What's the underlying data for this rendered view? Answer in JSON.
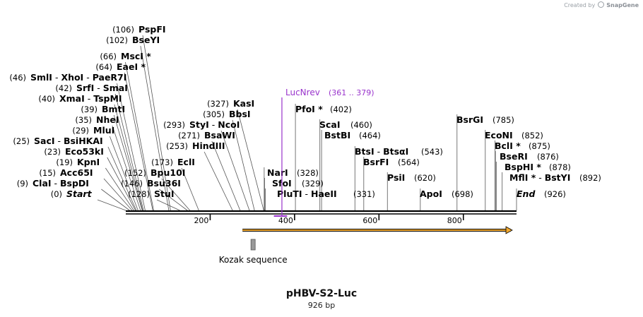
{
  "header": {
    "credit_prefix": "Created by",
    "credit_brand": "SnapGene"
  },
  "plasmid": {
    "name": "pHBV-S2-Luc",
    "length_label": "926 bp",
    "length": 926
  },
  "colors": {
    "line": "#000000",
    "primer": "#9933cc",
    "feature_orange": "#f0a830",
    "kozak_fill": "#999999"
  },
  "ruler": {
    "ticks": [
      200,
      400,
      600,
      800
    ]
  },
  "features": {
    "orf": {
      "start": 300,
      "end": 926,
      "direction": "forward"
    },
    "kozak": {
      "label": "Kozak sequence",
      "position": 300
    },
    "primer": {
      "name": "LucNrev",
      "range": "(361 .. 379)",
      "start": 361,
      "end": 379,
      "direction": "reverse"
    }
  },
  "sites": [
    {
      "names": [
        {
          "n": "Start",
          "italic": true
        }
      ],
      "pos": "(0)",
      "bp": 0,
      "side": "left"
    },
    {
      "names": [
        {
          "n": "ClaI"
        },
        {
          "n": "BspDI"
        }
      ],
      "pos": "(9)",
      "bp": 9,
      "side": "left"
    },
    {
      "names": [
        {
          "n": "Acc65I"
        }
      ],
      "pos": "(15)",
      "bp": 15,
      "side": "left"
    },
    {
      "names": [
        {
          "n": "KpnI"
        }
      ],
      "pos": "(19)",
      "bp": 19,
      "side": "left"
    },
    {
      "names": [
        {
          "n": "Eco53kI"
        }
      ],
      "pos": "(23)",
      "bp": 23,
      "side": "left"
    },
    {
      "names": [
        {
          "n": "SacI"
        },
        {
          "n": "BsiHKAI"
        }
      ],
      "pos": "(25)",
      "bp": 25,
      "side": "left"
    },
    {
      "names": [
        {
          "n": "MluI"
        }
      ],
      "pos": "(29)",
      "bp": 29,
      "side": "left"
    },
    {
      "names": [
        {
          "n": "NheI"
        }
      ],
      "pos": "(35)",
      "bp": 35,
      "side": "left"
    },
    {
      "names": [
        {
          "n": "BmtI"
        }
      ],
      "pos": "(39)",
      "bp": 39,
      "side": "left"
    },
    {
      "names": [
        {
          "n": "XmaI"
        },
        {
          "n": "TspMI"
        }
      ],
      "pos": "(40)",
      "bp": 40,
      "side": "left"
    },
    {
      "names": [
        {
          "n": "SrfI"
        },
        {
          "n": "SmaI"
        }
      ],
      "pos": "(42)",
      "bp": 42,
      "side": "left"
    },
    {
      "names": [
        {
          "n": "SmlI"
        },
        {
          "n": "XhoI"
        },
        {
          "n": "PaeR7I"
        }
      ],
      "pos": "(46)",
      "bp": 46,
      "side": "left"
    },
    {
      "names": [
        {
          "n": "EaeI *"
        }
      ],
      "pos": "(64)",
      "bp": 64,
      "side": "left"
    },
    {
      "names": [
        {
          "n": "MscI *"
        }
      ],
      "pos": "(66)",
      "bp": 66,
      "side": "left"
    },
    {
      "names": [
        {
          "n": "BseYI"
        }
      ],
      "pos": "(102)",
      "bp": 102,
      "side": "left"
    },
    {
      "names": [
        {
          "n": "PspFI"
        }
      ],
      "pos": "(106)",
      "bp": 106,
      "side": "left"
    },
    {
      "names": [
        {
          "n": "StuI"
        }
      ],
      "pos": "(128)",
      "bp": 128,
      "side": "left"
    },
    {
      "names": [
        {
          "n": "Bsu36I"
        }
      ],
      "pos": "(146)",
      "bp": 146,
      "side": "left"
    },
    {
      "names": [
        {
          "n": "Bpu10I"
        }
      ],
      "pos": "(152)",
      "bp": 152,
      "side": "left"
    },
    {
      "names": [
        {
          "n": "EclI"
        }
      ],
      "pos": "(173)",
      "bp": 173,
      "side": "left"
    },
    {
      "names": [
        {
          "n": "HindIII"
        }
      ],
      "pos": "(253)",
      "bp": 253,
      "side": "left"
    },
    {
      "names": [
        {
          "n": "BsaWI"
        }
      ],
      "pos": "(271)",
      "bp": 271,
      "side": "left"
    },
    {
      "names": [
        {
          "n": "StyI"
        },
        {
          "n": "NcoI"
        }
      ],
      "pos": "(293)",
      "bp": 293,
      "side": "left"
    },
    {
      "names": [
        {
          "n": "BbsI"
        }
      ],
      "pos": "(305)",
      "bp": 305,
      "side": "left"
    },
    {
      "names": [
        {
          "n": "KasI"
        }
      ],
      "pos": "(327)",
      "bp": 327,
      "side": "left"
    },
    {
      "names": [
        {
          "n": "NarI"
        }
      ],
      "pos": "(328)",
      "bp": 328,
      "side": "right"
    },
    {
      "names": [
        {
          "n": "SfoI"
        }
      ],
      "pos": "(329)",
      "bp": 329,
      "side": "right"
    },
    {
      "names": [
        {
          "n": "PluTI"
        },
        {
          "n": "HaeII"
        }
      ],
      "pos": "(331)",
      "bp": 331,
      "side": "right"
    },
    {
      "names": [
        {
          "n": "PfoI *"
        }
      ],
      "pos": "(402)",
      "bp": 402,
      "side": "right"
    },
    {
      "names": [
        {
          "n": "ScaI"
        }
      ],
      "pos": "(460)",
      "bp": 460,
      "side": "right"
    },
    {
      "names": [
        {
          "n": "BstBI"
        }
      ],
      "pos": "(464)",
      "bp": 464,
      "side": "right"
    },
    {
      "names": [
        {
          "n": "BtsI"
        },
        {
          "n": "BtsαI"
        }
      ],
      "pos": "(543)",
      "bp": 543,
      "side": "right"
    },
    {
      "names": [
        {
          "n": "BsrFI"
        }
      ],
      "pos": "(564)",
      "bp": 564,
      "side": "right"
    },
    {
      "names": [
        {
          "n": "PsiI"
        }
      ],
      "pos": "(620)",
      "bp": 620,
      "side": "right"
    },
    {
      "names": [
        {
          "n": "ApoI"
        }
      ],
      "pos": "(698)",
      "bp": 698,
      "side": "right"
    },
    {
      "names": [
        {
          "n": "BsrGI"
        }
      ],
      "pos": "(785)",
      "bp": 785,
      "side": "right"
    },
    {
      "names": [
        {
          "n": "EcoNI"
        }
      ],
      "pos": "(852)",
      "bp": 852,
      "side": "right"
    },
    {
      "names": [
        {
          "n": "BclI *"
        }
      ],
      "pos": "(875)",
      "bp": 875,
      "side": "right"
    },
    {
      "names": [
        {
          "n": "BseRI"
        }
      ],
      "pos": "(876)",
      "bp": 876,
      "side": "right"
    },
    {
      "names": [
        {
          "n": "BspHI *"
        }
      ],
      "pos": "(878)",
      "bp": 878,
      "side": "right"
    },
    {
      "names": [
        {
          "n": "MflI *"
        },
        {
          "n": "BstYI"
        }
      ],
      "pos": "(892)",
      "bp": 892,
      "side": "right"
    },
    {
      "names": [
        {
          "n": "End",
          "italic": true
        }
      ],
      "pos": "(926)",
      "bp": 926,
      "side": "right"
    }
  ]
}
